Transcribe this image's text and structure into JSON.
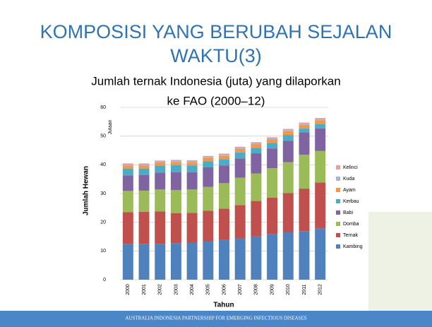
{
  "slide": {
    "title_lines": [
      "KOMPOSISI YANG BERUBAH SEJALAN",
      "WAKTU(3)"
    ],
    "subtitle_lines": [
      "Jumlah ternak Indonesia (juta) yang dilaporkan",
      "ke FAO (2000–12)"
    ],
    "footer": "AUSTRALIA INDONESIA PARTNERSHIP FOR EMERGING INFECTIOUS DISEASES"
  },
  "chart_data": {
    "type": "stacked-bar",
    "y_label": "Jumlah Hewan",
    "x_label": "Tahun",
    "unit_label": "Jutaan",
    "categories": [
      "2000",
      "2001",
      "2002",
      "2003",
      "2004",
      "2005",
      "2006",
      "2007",
      "2008",
      "2009",
      "2010",
      "2011",
      "2012"
    ],
    "series": [
      {
        "name": "Kambing",
        "color": "#4f81bd",
        "values": [
          12.5,
          12.5,
          12.5,
          12.7,
          12.8,
          13.4,
          13.8,
          14.5,
          15.1,
          15.8,
          16.6,
          16.9,
          17.9
        ]
      },
      {
        "name": "Ternak",
        "color": "#c0504d",
        "values": [
          11.0,
          11.1,
          11.3,
          10.5,
          10.5,
          10.6,
          10.9,
          11.5,
          12.3,
          12.8,
          13.6,
          14.8,
          15.9
        ]
      },
      {
        "name": "Domba",
        "color": "#9bbb59",
        "values": [
          7.4,
          7.4,
          7.6,
          8.0,
          8.1,
          8.3,
          8.9,
          9.5,
          9.6,
          10.2,
          10.7,
          11.8,
          11.0
        ]
      },
      {
        "name": "Babi",
        "color": "#8064a2",
        "values": [
          5.4,
          5.4,
          5.9,
          6.2,
          6.0,
          6.8,
          6.2,
          6.7,
          7.0,
          6.9,
          7.5,
          7.8,
          7.9
        ]
      },
      {
        "name": "Kerbau",
        "color": "#4bacc6",
        "values": [
          2.4,
          2.3,
          2.4,
          2.5,
          2.4,
          2.1,
          2.2,
          2.1,
          1.9,
          1.9,
          2.0,
          1.3,
          1.4
        ]
      },
      {
        "name": "Ayam",
        "color": "#f79646",
        "values": [
          1.0,
          1.0,
          1.0,
          1.0,
          1.0,
          1.1,
          1.1,
          1.2,
          1.2,
          1.2,
          1.3,
          1.3,
          1.4
        ]
      },
      {
        "name": "Kuda",
        "color": "#a5b5d0",
        "values": [
          0.4,
          0.4,
          0.4,
          0.4,
          0.4,
          0.4,
          0.4,
          0.4,
          0.4,
          0.4,
          0.4,
          0.4,
          0.4
        ]
      },
      {
        "name": "Kelinci",
        "color": "#e6a0a0",
        "values": [
          0.4,
          0.4,
          0.4,
          0.4,
          0.4,
          0.4,
          0.4,
          0.4,
          0.4,
          0.4,
          0.4,
          0.4,
          0.4
        ]
      }
    ],
    "ylim": [
      0,
      60
    ],
    "yticks": [
      0,
      10,
      20,
      30,
      40,
      50,
      60
    ],
    "grid": true,
    "legend": "right"
  }
}
